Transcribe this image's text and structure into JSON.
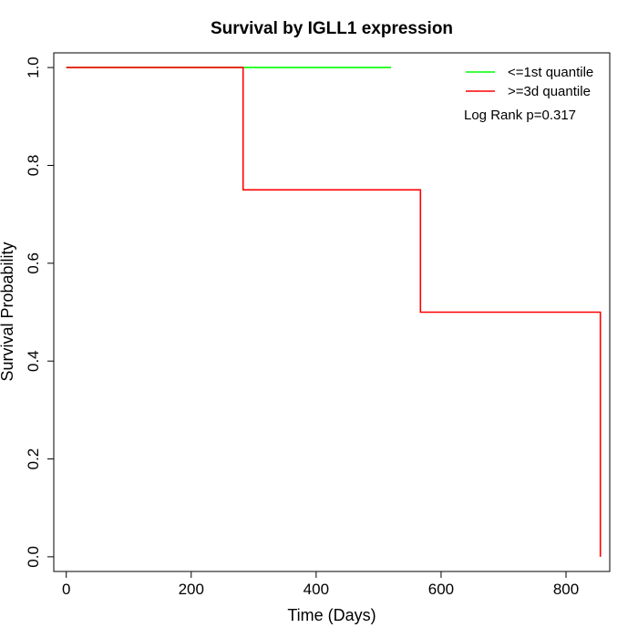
{
  "chart_data": {
    "type": "line",
    "title": "Survival by IGLL1 expression",
    "xlabel": "Time (Days)",
    "ylabel": "Survival Probability",
    "xlim": [
      -20,
      870
    ],
    "ylim": [
      -0.03,
      1.03
    ],
    "xticks": [
      0,
      200,
      400,
      600,
      800
    ],
    "yticks": [
      0.0,
      0.2,
      0.4,
      0.6,
      0.8,
      1.0
    ],
    "xtick_labels": [
      "0",
      "200",
      "400",
      "600",
      "800"
    ],
    "ytick_labels": [
      "0.0",
      "0.2",
      "0.4",
      "0.6",
      "0.8",
      "1.0"
    ],
    "grid": false,
    "legend_position": "top-right",
    "annotation": "Log Rank p=0.317",
    "series": [
      {
        "name": "<=1st quantile",
        "color": "#00ff00",
        "step": true,
        "points": [
          [
            0,
            1.0
          ],
          [
            520,
            1.0
          ]
        ]
      },
      {
        "name": ">=3d quantile",
        "color": "#ff0000",
        "step": true,
        "points": [
          [
            0,
            1.0
          ],
          [
            283,
            1.0
          ],
          [
            283,
            0.75
          ],
          [
            567,
            0.75
          ],
          [
            567,
            0.5
          ],
          [
            855,
            0.5
          ],
          [
            855,
            0.0
          ]
        ]
      }
    ]
  }
}
